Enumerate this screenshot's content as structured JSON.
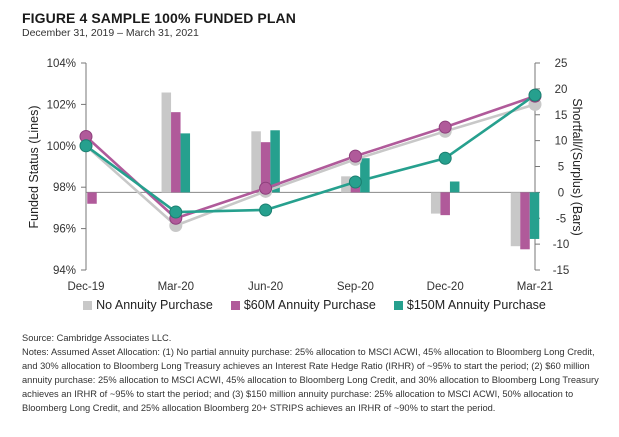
{
  "header": {
    "title": "FIGURE 4   SAMPLE 100% FUNDED PLAN",
    "subtitle": "December 31, 2019 – March 31, 2021"
  },
  "chart_data": {
    "type": "bar+line",
    "title": "SAMPLE 100% FUNDED PLAN",
    "subtitle": "December 31, 2019 – March 31, 2021",
    "categories": [
      "Dec-19",
      "Mar-20",
      "Jun-20",
      "Sep-20",
      "Dec-20",
      "Mar-21"
    ],
    "ylabel_left": "Funded Status (Lines)",
    "ylabel_right": "Shortfall/(Surplus) (Bars)",
    "ylim_left": [
      94,
      104
    ],
    "yticks_left": [
      "94%",
      "96%",
      "98%",
      "100%",
      "102%",
      "104%"
    ],
    "ylim_right": [
      -15,
      25
    ],
    "yticks_right": [
      "-15",
      "-10",
      "-5",
      "0",
      "5",
      "10",
      "15",
      "20",
      "25"
    ],
    "grid": false,
    "legend_position": "bottom",
    "series": [
      {
        "name": "No Annuity Purchase",
        "color": "#c8c8c8",
        "bars": [
          0,
          19.3,
          11.8,
          3.1,
          -4.1,
          -10.4
        ],
        "line": [
          100.0,
          96.15,
          97.8,
          99.35,
          100.7,
          102.0
        ]
      },
      {
        "name": "$60M Annuity Purchase",
        "color": "#b05a9a",
        "bars": [
          -2.2,
          15.5,
          9.7,
          1.7,
          -4.4,
          -11.0
        ],
        "line": [
          100.45,
          96.5,
          97.95,
          99.5,
          100.9,
          102.4
        ]
      },
      {
        "name": "$150M Annuity Purchase",
        "color": "#26a08e",
        "bars": [
          0,
          11.4,
          12.0,
          6.6,
          2.1,
          -9.0
        ],
        "line": [
          100.0,
          96.8,
          96.9,
          98.25,
          99.4,
          102.45
        ]
      }
    ]
  },
  "footer": {
    "source": "Source: Cambridge Associates LLC.",
    "notes": "Notes: Assumed Asset Allocation: (1) No partial annuity purchase: 25% allocation to MSCI ACWI, 45% allocation to Bloomberg Long Credit, and 30% allocation to Bloomberg Long Treasury achieves an Interest Rate Hedge Ratio (IRHR) of ~95% to start the period; (2) $60 million annuity purchase: 25% allocation to MSCI ACWI, 45% allocation to Bloomberg Long Credit, and 30% allocation to Bloomberg Long Treasury achieves an IRHR of ~95% to start the period; and (3) $150 million annuity purchase: 25% allocation to MSCI ACWI, 50% allocation to Bloomberg Long Credit, and 25% allocation Bloomberg 20+ STRIPS achieves an IRHR of ~90% to start the period."
  }
}
